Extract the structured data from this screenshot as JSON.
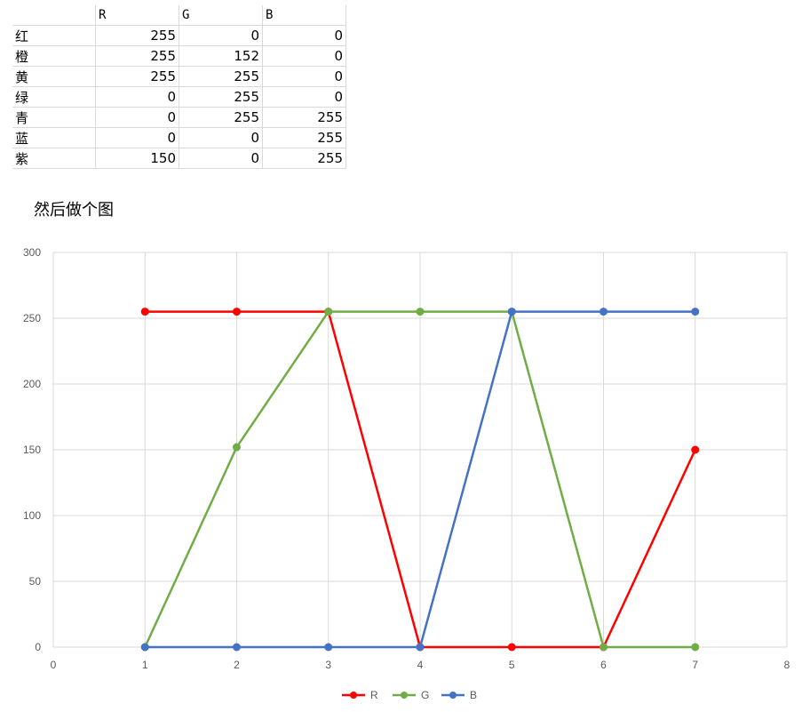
{
  "sheet": {
    "headers": [
      "",
      "R",
      "G",
      "B"
    ],
    "rows": [
      {
        "label": "红",
        "r": "255",
        "g": "0",
        "b": "0"
      },
      {
        "label": "橙",
        "r": "255",
        "g": "152",
        "b": "0"
      },
      {
        "label": "黄",
        "r": "255",
        "g": "255",
        "b": "0"
      },
      {
        "label": "绿",
        "r": "0",
        "g": "255",
        "b": "0"
      },
      {
        "label": "青",
        "r": "0",
        "g": "255",
        "b": "255"
      },
      {
        "label": "蓝",
        "r": "0",
        "g": "0",
        "b": "255"
      },
      {
        "label": "紫",
        "r": "150",
        "g": "0",
        "b": "255"
      }
    ]
  },
  "caption": "然后做个图",
  "chart_data": {
    "type": "line",
    "x": [
      1,
      2,
      3,
      4,
      5,
      6,
      7
    ],
    "series": [
      {
        "name": "R",
        "color": "#ff0000",
        "values": [
          255,
          255,
          255,
          0,
          0,
          0,
          150
        ]
      },
      {
        "name": "G",
        "color": "#70ad47",
        "values": [
          0,
          152,
          255,
          255,
          255,
          0,
          0
        ]
      },
      {
        "name": "B",
        "color": "#4472c4",
        "values": [
          0,
          0,
          0,
          0,
          255,
          255,
          255
        ]
      }
    ],
    "xlim": [
      0,
      8
    ],
    "ylim": [
      0,
      300
    ],
    "xticks": [
      0,
      1,
      2,
      3,
      4,
      5,
      6,
      7,
      8
    ],
    "yticks": [
      0,
      50,
      100,
      150,
      200,
      250,
      300
    ],
    "grid": true,
    "legend": "bottom",
    "title": "",
    "xlabel": "",
    "ylabel": ""
  }
}
